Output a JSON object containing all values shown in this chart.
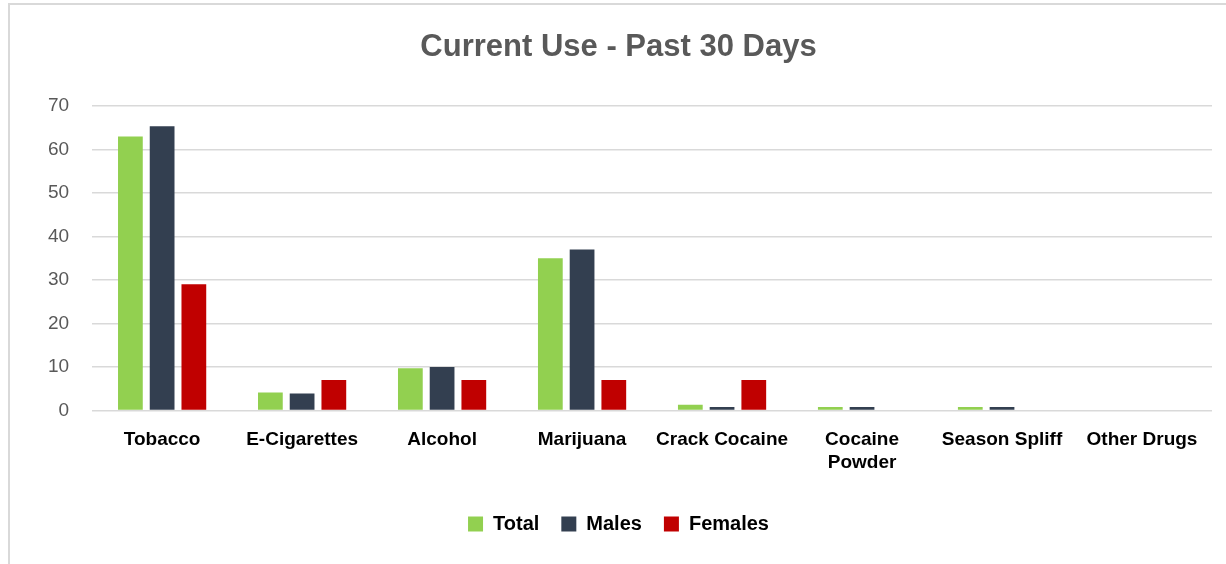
{
  "chart_data": {
    "type": "bar",
    "title": "Current Use - Past 30 Days",
    "categories": [
      "Tobacco",
      "E-Cigarettes",
      "Alcohol",
      "Marijuana",
      "Crack Cocaine",
      "Cocaine Powder",
      "Season Spliff",
      "Other Drugs"
    ],
    "series": [
      {
        "name": "Total",
        "color": "#92d050",
        "values": [
          63,
          4.1,
          9.7,
          35,
          1.3,
          0.8,
          0.8,
          0
        ]
      },
      {
        "name": "Males",
        "color": "#333f50",
        "values": [
          65.4,
          3.9,
          10,
          37,
          0.8,
          0.8,
          0.8,
          0
        ]
      },
      {
        "name": "Females",
        "color": "#c00000",
        "values": [
          29,
          7,
          7,
          7,
          7,
          0,
          0,
          0
        ]
      }
    ],
    "ylim": [
      0,
      70
    ],
    "yticks": [
      0,
      10,
      20,
      30,
      40,
      50,
      60,
      70
    ],
    "grid": "y",
    "legend": "bottom"
  }
}
